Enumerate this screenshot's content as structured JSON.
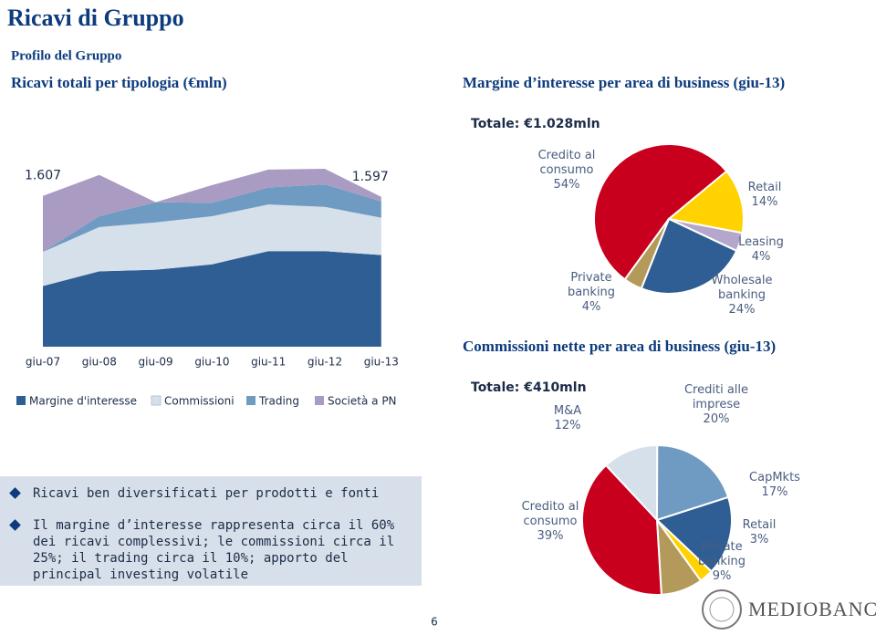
{
  "page": {
    "title": "Ricavi di Gruppo",
    "section": "Profilo del Gruppo",
    "bullets": [
      "Ricavi ben diversificati per prodotti e fonti",
      "Il margine d’interesse rappresenta circa il 60% dei ricavi complessivi; le commissioni circa il 25%; il trading circa il 10%; apporto del principal investing  volatile"
    ],
    "page_number": "6",
    "logo": "MEDIOBANCA"
  },
  "chart_data": [
    {
      "type": "area",
      "title": "Ricavi totali per tipologia (€mln)",
      "categories": [
        "giu-07",
        "giu-08",
        "giu-09",
        "giu-10",
        "giu-11",
        "giu-12",
        "giu-13"
      ],
      "series": [
        {
          "name": "Margine d'interesse",
          "color": "#2e5e94",
          "values": [
            646,
            803,
            820,
            878,
            1018,
            1018,
            977
          ]
        },
        {
          "name": "Commissioni",
          "color": "#d6e0ea",
          "values": [
            364,
            472,
            505,
            513,
            497,
            472,
            397
          ]
        },
        {
          "name": "Trading",
          "color": "#6f9bc3",
          "values": [
            0,
            116,
            215,
            141,
            182,
            240,
            174
          ]
        },
        {
          "name": "Società a PN",
          "color": "#a99bc1",
          "values": [
            597,
            439,
            0,
            190,
            190,
            166,
            49
          ]
        }
      ],
      "totals": [
        1607,
        null,
        null,
        null,
        null,
        null,
        1597
      ],
      "total_labels": [
        "1.607",
        null,
        null,
        null,
        null,
        null,
        "1.597"
      ]
    },
    {
      "type": "pie",
      "title": "Margine d’interesse per area di business (giu-13)",
      "subtitle": "Totale: €1.028mln",
      "categories": [
        "Credito al consumo",
        "Retail",
        "Leasing",
        "Wholesale banking",
        "Private banking"
      ],
      "values": [
        54,
        14,
        4,
        24,
        4
      ],
      "value_labels": [
        "54%",
        "14%",
        "4%",
        "24%",
        "4%"
      ],
      "colors": [
        "#c8001e",
        "#ffd200",
        "#b5a6cc",
        "#2e5e94",
        "#b39a5a"
      ]
    },
    {
      "type": "pie",
      "title": "Commissioni nette per area di business (giu-13)",
      "subtitle": "Totale: €410mln",
      "categories": [
        "M&A",
        "Crediti alle imprese",
        "CapMkts",
        "Retail",
        "Private banking",
        "Credito al consumo"
      ],
      "values": [
        12,
        20,
        17,
        3,
        9,
        39
      ],
      "value_labels": [
        "12%",
        "20%",
        "17%",
        "3%",
        "9%",
        "39%"
      ],
      "colors": [
        "#d6e0ea",
        "#6f9bc3",
        "#2e5e94",
        "#ffd200",
        "#b39a5a",
        "#c8001e"
      ]
    }
  ]
}
